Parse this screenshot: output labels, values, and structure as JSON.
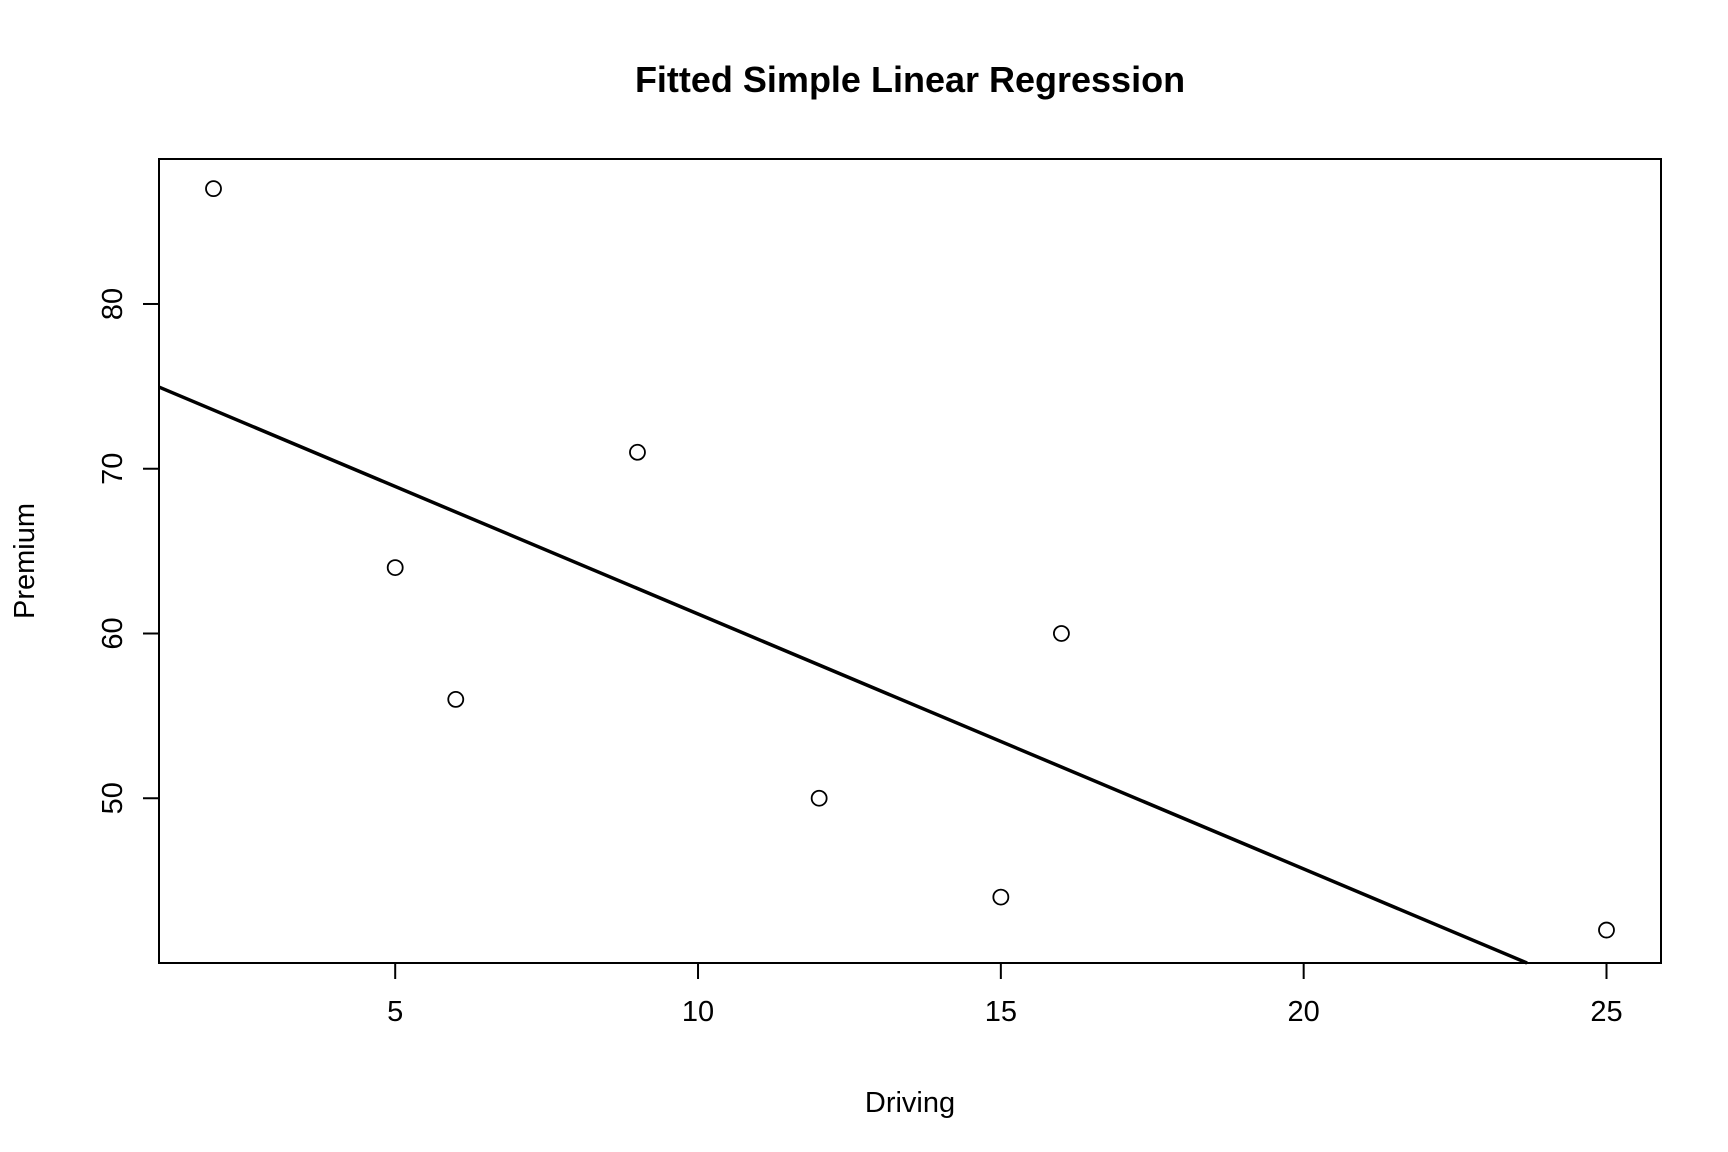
{
  "chart_data": {
    "type": "scatter",
    "title": "Fitted Simple Linear Regression",
    "xlabel": "Driving",
    "ylabel": "Premium",
    "xlim": [
      1.1,
      25.9
    ],
    "ylim": [
      40.0,
      88.8
    ],
    "xticks": [
      5,
      10,
      15,
      20,
      25
    ],
    "yticks": [
      50,
      60,
      70,
      80
    ],
    "grid": false,
    "points": [
      {
        "x": 2,
        "y": 87
      },
      {
        "x": 5,
        "y": 64
      },
      {
        "x": 6,
        "y": 56
      },
      {
        "x": 9,
        "y": 71
      },
      {
        "x": 12,
        "y": 50
      },
      {
        "x": 15,
        "y": 44
      },
      {
        "x": 16,
        "y": 60
      },
      {
        "x": 25,
        "y": 42
      }
    ],
    "fit_line": {
      "intercept": 76.66,
      "slope": -1.5476
    }
  },
  "colors": {
    "axis": "#000000",
    "points": "#000000",
    "line": "#000000",
    "background": "#ffffff"
  }
}
